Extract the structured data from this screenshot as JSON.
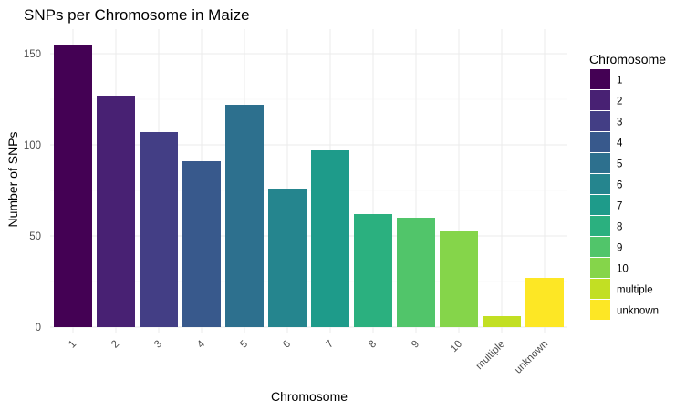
{
  "chart_data": {
    "type": "bar",
    "title": "SNPs per Chromosome in Maize",
    "xlabel": "Chromosome",
    "ylabel": "Number of SNPs",
    "categories": [
      "1",
      "2",
      "3",
      "4",
      "5",
      "6",
      "7",
      "8",
      "9",
      "10",
      "multiple",
      "unknown"
    ],
    "values": [
      155,
      127,
      107,
      91,
      122,
      76,
      97,
      62,
      60,
      53,
      6,
      27
    ],
    "ylim": [
      0,
      160
    ],
    "yticks": [
      0,
      50,
      100,
      150
    ],
    "grid": true,
    "legend": {
      "title": "Chromosome",
      "placement": "right"
    },
    "colors": [
      "#440154",
      "#482173",
      "#433E85",
      "#38598C",
      "#2D708E",
      "#25858E",
      "#1E9B8A",
      "#2BB07F",
      "#51C56A",
      "#85D54A",
      "#C2DF23",
      "#FDE725"
    ]
  }
}
